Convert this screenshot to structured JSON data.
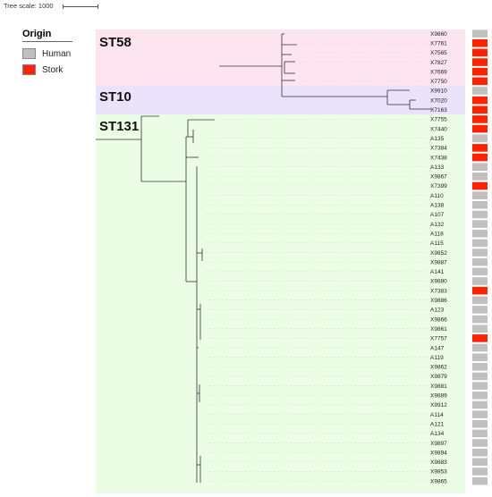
{
  "scale_text": "Tree scale: 1000",
  "legend": {
    "title": "Origin",
    "items": [
      {
        "label": "Human",
        "color": "#c0c0c0"
      },
      {
        "label": "Stork",
        "color": "#ff2200"
      }
    ]
  },
  "clades": [
    {
      "label": "ST58",
      "color": "#fde5ef"
    },
    {
      "label": "ST10",
      "color": "#e9e3fb"
    },
    {
      "label": "ST131",
      "color": "#ecfde5"
    }
  ],
  "leaves": [
    {
      "name": "X9860",
      "origin": "Human"
    },
    {
      "name": "X7761",
      "origin": "Stork"
    },
    {
      "name": "X7565",
      "origin": "Stork"
    },
    {
      "name": "X7827",
      "origin": "Stork"
    },
    {
      "name": "X7669",
      "origin": "Stork"
    },
    {
      "name": "X7750",
      "origin": "Stork"
    },
    {
      "name": "X9910",
      "origin": "Human"
    },
    {
      "name": "X7020",
      "origin": "Stork"
    },
    {
      "name": "X7163",
      "origin": "Stork"
    },
    {
      "name": "X7755",
      "origin": "Stork"
    },
    {
      "name": "X7440",
      "origin": "Stork"
    },
    {
      "name": "A135",
      "origin": "Human"
    },
    {
      "name": "X7384",
      "origin": "Stork"
    },
    {
      "name": "X7438",
      "origin": "Stork"
    },
    {
      "name": "A133",
      "origin": "Human"
    },
    {
      "name": "X9867",
      "origin": "Human"
    },
    {
      "name": "X7399",
      "origin": "Stork"
    },
    {
      "name": "A110",
      "origin": "Human"
    },
    {
      "name": "A138",
      "origin": "Human"
    },
    {
      "name": "A107",
      "origin": "Human"
    },
    {
      "name": "A132",
      "origin": "Human"
    },
    {
      "name": "A118",
      "origin": "Human"
    },
    {
      "name": "A115",
      "origin": "Human"
    },
    {
      "name": "X9852",
      "origin": "Human"
    },
    {
      "name": "X9887",
      "origin": "Human"
    },
    {
      "name": "A141",
      "origin": "Human"
    },
    {
      "name": "X9880",
      "origin": "Human"
    },
    {
      "name": "X7383",
      "origin": "Stork"
    },
    {
      "name": "X9886",
      "origin": "Human"
    },
    {
      "name": "A123",
      "origin": "Human"
    },
    {
      "name": "X9866",
      "origin": "Human"
    },
    {
      "name": "X9861",
      "origin": "Human"
    },
    {
      "name": "X7757",
      "origin": "Stork"
    },
    {
      "name": "A147",
      "origin": "Human"
    },
    {
      "name": "A119",
      "origin": "Human"
    },
    {
      "name": "X9862",
      "origin": "Human"
    },
    {
      "name": "X9879",
      "origin": "Human"
    },
    {
      "name": "X9881",
      "origin": "Human"
    },
    {
      "name": "X9889",
      "origin": "Human"
    },
    {
      "name": "X9912",
      "origin": "Human"
    },
    {
      "name": "A114",
      "origin": "Human"
    },
    {
      "name": "A121",
      "origin": "Human"
    },
    {
      "name": "A134",
      "origin": "Human"
    },
    {
      "name": "X9897",
      "origin": "Human"
    },
    {
      "name": "X9894",
      "origin": "Human"
    },
    {
      "name": "X9883",
      "origin": "Human"
    },
    {
      "name": "X9853",
      "origin": "Human"
    },
    {
      "name": "X9865",
      "origin": "Human"
    }
  ]
}
